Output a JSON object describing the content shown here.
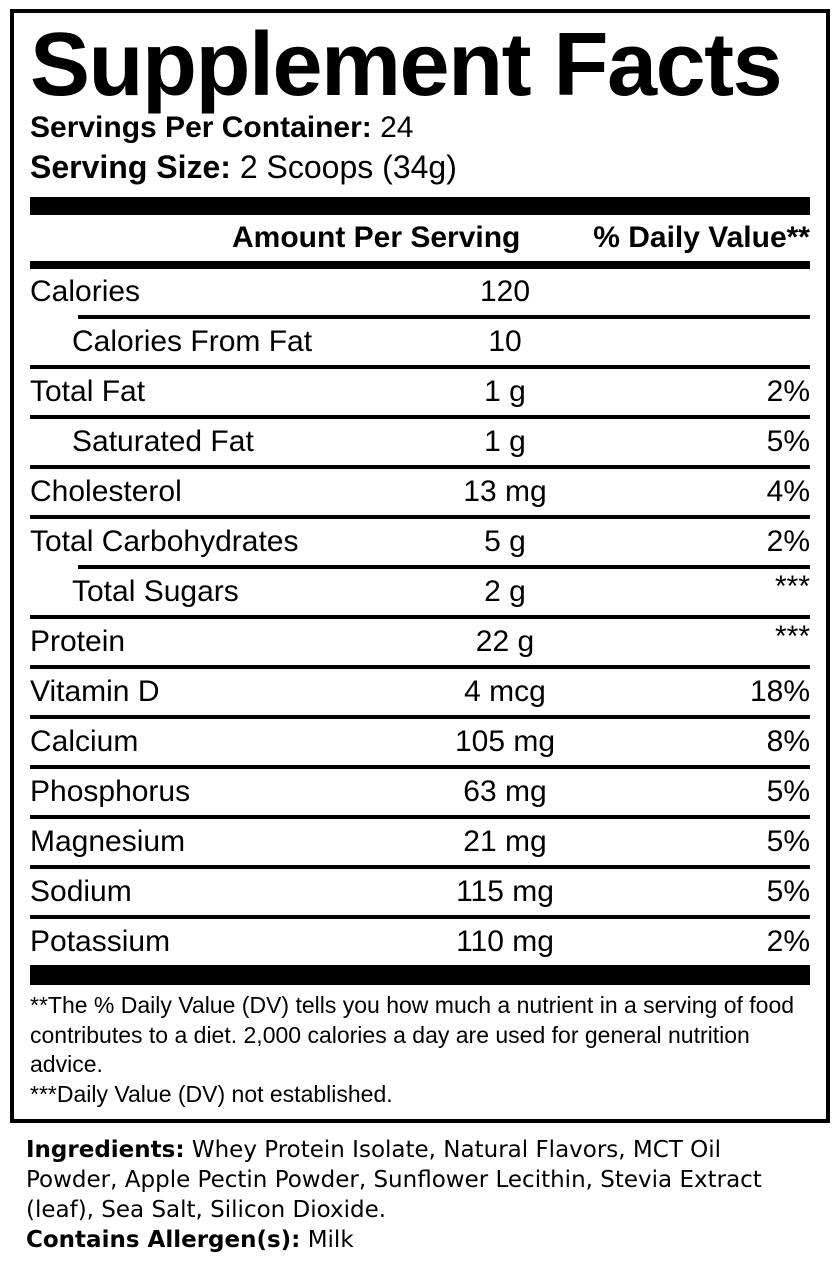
{
  "label": {
    "title": "Supplement Facts",
    "servings_per_container_label": "Servings Per Container:",
    "servings_per_container_value": "24",
    "serving_size_label": "Serving Size:",
    "serving_size_value": "2 Scoops (34g)",
    "columns": {
      "amount": "Amount Per Serving",
      "daily_value": "% Daily Value**"
    },
    "rows": [
      {
        "name": "Calories",
        "amount": "120",
        "dv": "",
        "indent": false,
        "separator": "none",
        "dv_raised": false
      },
      {
        "name": "Calories From Fat",
        "amount": "10",
        "dv": "",
        "indent": true,
        "separator": "indent",
        "dv_raised": false
      },
      {
        "name": "Total Fat",
        "amount": "1 g",
        "dv": "2%",
        "indent": false,
        "separator": "full",
        "dv_raised": false
      },
      {
        "name": "Saturated Fat",
        "amount": "1 g",
        "dv": "5%",
        "indent": true,
        "separator": "full",
        "dv_raised": false
      },
      {
        "name": "Cholesterol",
        "amount": "13 mg",
        "dv": "4%",
        "indent": false,
        "separator": "full",
        "dv_raised": false
      },
      {
        "name": "Total Carbohydrates",
        "amount": "5 g",
        "dv": "2%",
        "indent": false,
        "separator": "full",
        "dv_raised": false
      },
      {
        "name": "Total Sugars",
        "amount": "2 g",
        "dv": "***",
        "indent": true,
        "separator": "indent",
        "dv_raised": true
      },
      {
        "name": "Protein",
        "amount": "22 g",
        "dv": "***",
        "indent": false,
        "separator": "full",
        "dv_raised": true
      },
      {
        "name": "Vitamin D",
        "amount": "4 mcg",
        "dv": "18%",
        "indent": false,
        "separator": "full",
        "dv_raised": false
      },
      {
        "name": "Calcium",
        "amount": "105 mg",
        "dv": "8%",
        "indent": false,
        "separator": "full",
        "dv_raised": false
      },
      {
        "name": "Phosphorus",
        "amount": "63 mg",
        "dv": "5%",
        "indent": false,
        "separator": "full",
        "dv_raised": false
      },
      {
        "name": "Magnesium",
        "amount": "21 mg",
        "dv": "5%",
        "indent": false,
        "separator": "full",
        "dv_raised": false
      },
      {
        "name": "Sodium",
        "amount": "115 mg",
        "dv": "5%",
        "indent": false,
        "separator": "full",
        "dv_raised": false
      },
      {
        "name": "Potassium",
        "amount": "110 mg",
        "dv": "2%",
        "indent": false,
        "separator": "full",
        "dv_raised": false
      }
    ],
    "footnotes": {
      "daily_value_note": "**The % Daily Value (DV) tells you how much a nutrient in a serving of food contributes to a diet. 2,000 calories a day are used for general nutrition advice.",
      "not_established_note": "***Daily Value (DV) not established."
    }
  },
  "ingredients": {
    "label": "Ingredients:",
    "text": " Whey Protein Isolate, Natural Flavors, MCT Oil Powder, Apple Pectin Powder, Sunflower Lecithin, Stevia Extract (leaf), Sea Salt, Silicon Dioxide.",
    "allergen_label": "Contains Allergen(s):",
    "allergen_value": " Milk"
  },
  "colors": {
    "ink": "#000000",
    "paper": "#ffffff"
  }
}
